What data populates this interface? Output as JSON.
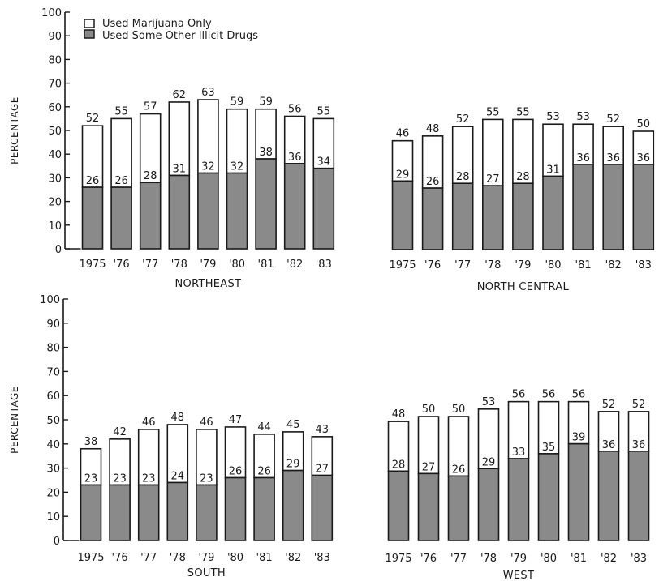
{
  "legend": {
    "white_label": "Used Marijuana Only",
    "gray_label": "Used Some Other Illicit Drugs"
  },
  "colors": {
    "white_fill": "#ffffff",
    "gray_fill": "#8a8a8a",
    "stroke": "#1a1a1a"
  },
  "chart_data": [
    {
      "type": "bar",
      "title": "NORTHEAST",
      "ylabel": "PERCENTAGE",
      "ylim": [
        0,
        100
      ],
      "yticks": [
        0,
        10,
        20,
        30,
        40,
        50,
        60,
        70,
        80,
        90,
        100
      ],
      "categories": [
        "1975",
        "'76",
        "'77",
        "'78",
        "'79",
        "'80",
        "'81",
        "'82",
        "'83"
      ],
      "series": [
        {
          "name": "Used Some Other Illicit Drugs",
          "values": [
            26,
            26,
            28,
            31,
            32,
            32,
            38,
            36,
            34
          ]
        },
        {
          "name": "Used Marijuana Only",
          "values": [
            26,
            29,
            29,
            31,
            31,
            27,
            21,
            20,
            21
          ]
        }
      ],
      "totals": [
        52,
        55,
        57,
        62,
        63,
        59,
        59,
        56,
        55
      ]
    },
    {
      "type": "bar",
      "title": "NORTH CENTRAL",
      "ylabel": "",
      "ylim": [
        0,
        100
      ],
      "yticks": [],
      "categories": [
        "1975",
        "'76",
        "'77",
        "'78",
        "'79",
        "'80",
        "'81",
        "'82",
        "'83"
      ],
      "series": [
        {
          "name": "Used Some Other Illicit Drugs",
          "values": [
            29,
            26,
            28,
            27,
            28,
            31,
            36,
            36,
            36
          ]
        },
        {
          "name": "Used Marijuana Only",
          "values": [
            17,
            22,
            24,
            28,
            27,
            22,
            17,
            16,
            14
          ]
        }
      ],
      "totals": [
        46,
        48,
        52,
        55,
        55,
        53,
        53,
        52,
        50
      ]
    },
    {
      "type": "bar",
      "title": "SOUTH",
      "ylabel": "PERCENTAGE",
      "ylim": [
        0,
        100
      ],
      "yticks": [
        0,
        10,
        20,
        30,
        40,
        50,
        60,
        70,
        80,
        90,
        100
      ],
      "categories": [
        "1975",
        "'76",
        "'77",
        "'78",
        "'79",
        "'80",
        "'81",
        "'82",
        "'83"
      ],
      "series": [
        {
          "name": "Used Some Other Illicit Drugs",
          "values": [
            23,
            23,
            23,
            24,
            23,
            26,
            26,
            29,
            27
          ]
        },
        {
          "name": "Used Marijuana Only",
          "values": [
            15,
            19,
            23,
            24,
            23,
            21,
            18,
            16,
            16
          ]
        }
      ],
      "totals": [
        38,
        42,
        46,
        48,
        46,
        47,
        44,
        45,
        43
      ]
    },
    {
      "type": "bar",
      "title": "WEST",
      "ylabel": "",
      "ylim": [
        0,
        100
      ],
      "yticks": [],
      "categories": [
        "1975",
        "'76",
        "'77",
        "'78",
        "'79",
        "'80",
        "'81",
        "'82",
        "'83"
      ],
      "series": [
        {
          "name": "Used Some Other Illicit Drugs",
          "values": [
            28,
            27,
            26,
            29,
            33,
            35,
            39,
            36,
            36
          ]
        },
        {
          "name": "Used Marijuana Only",
          "values": [
            20,
            23,
            24,
            24,
            23,
            21,
            17,
            16,
            16
          ]
        }
      ],
      "totals": [
        48,
        50,
        50,
        53,
        56,
        56,
        56,
        52,
        52
      ]
    }
  ]
}
